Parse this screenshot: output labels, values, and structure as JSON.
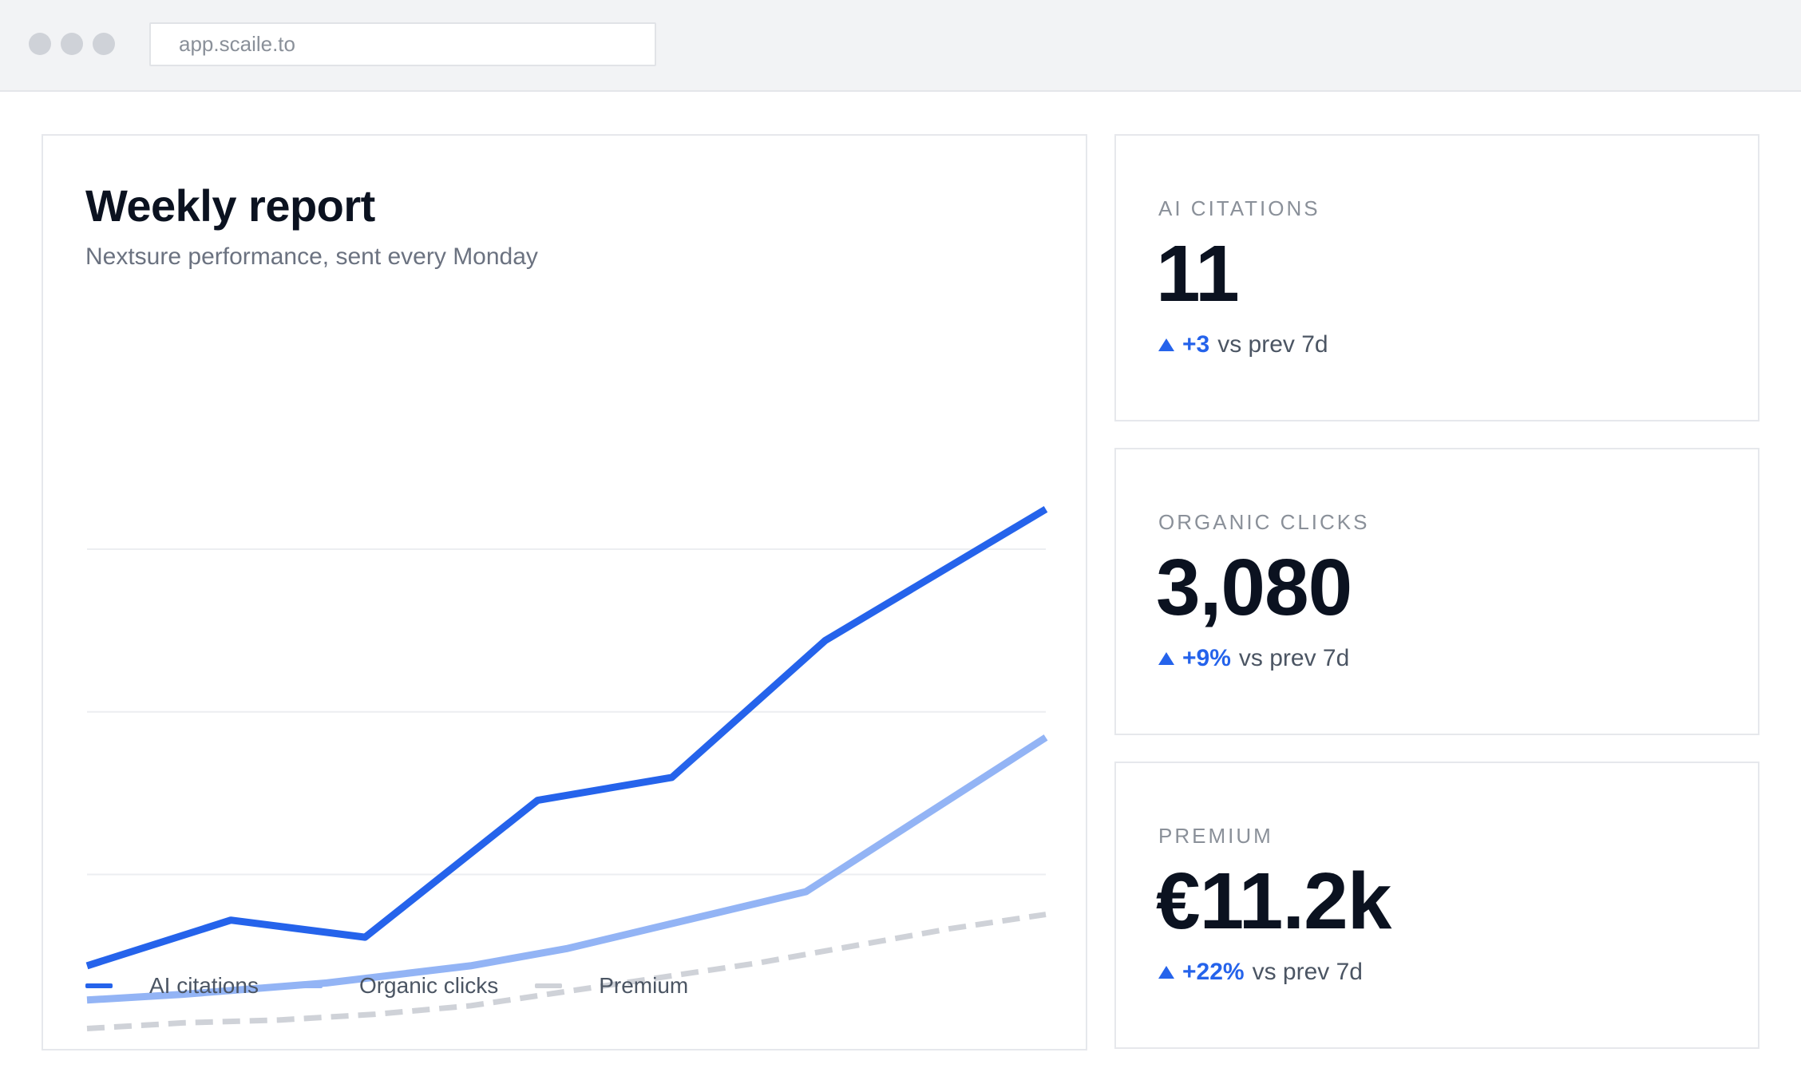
{
  "browser": {
    "url": "app.scaile.to"
  },
  "report": {
    "title": "Weekly report",
    "subtitle": "Nextsure performance, sent every Monday"
  },
  "chart_data": {
    "type": "line",
    "title": "Weekly report",
    "subtitle": "Nextsure performance, sent every Monday",
    "xlabel": "",
    "ylabel": "",
    "ylim": [
      0,
      100
    ],
    "grid": true,
    "legend_position": "bottom-left",
    "series": [
      {
        "name": "AI citations",
        "color": "#2563eb",
        "style": "solid",
        "x": [
          0,
          15,
          29,
          47,
          61,
          77,
          100
        ],
        "values": [
          14,
          22,
          19,
          43,
          47,
          71,
          94
        ]
      },
      {
        "name": "Organic clicks",
        "color": "#93b4f5",
        "style": "solid",
        "x": [
          0,
          10,
          25,
          40,
          50,
          75,
          100
        ],
        "values": [
          8,
          9,
          11,
          14,
          17,
          27,
          54
        ]
      },
      {
        "name": "Premium",
        "color": "#cfd2d8",
        "style": "dashed",
        "x": [
          0,
          10,
          20,
          30,
          40,
          50,
          60,
          70,
          80,
          90,
          100
        ],
        "values": [
          3,
          4,
          4.5,
          5.5,
          7,
          9.5,
          12,
          14.5,
          17.5,
          20.5,
          23
        ]
      }
    ]
  },
  "stats": [
    {
      "label": "AI CITATIONS",
      "value": "11",
      "delta": "+3",
      "suffix": "vs prev 7d"
    },
    {
      "label": "ORGANIC CLICKS",
      "value": "3,080",
      "delta": "+9%",
      "suffix": "vs prev 7d"
    },
    {
      "label": "PREMIUM",
      "value": "€11.2k",
      "delta": "+22%",
      "suffix": "vs prev 7d"
    }
  ]
}
